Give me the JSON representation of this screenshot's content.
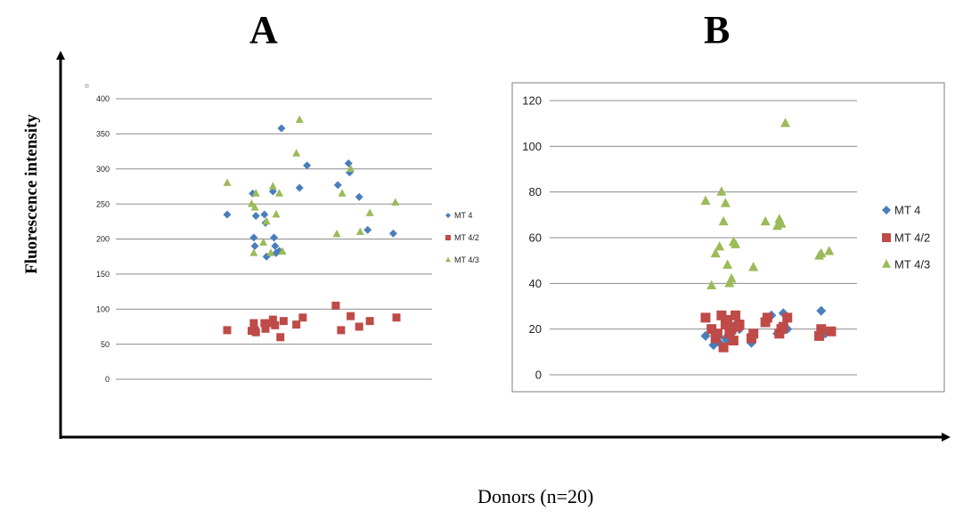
{
  "panels": {
    "a": "A",
    "b": "B"
  },
  "axis_labels": {
    "y": "Fluorescence intensity",
    "x": "Donors (n=20)"
  },
  "colors": {
    "mt4": "#4a7ebb",
    "mt42": "#be4b48",
    "mt43": "#9bbb59"
  },
  "chart_data": [
    {
      "type": "scatter",
      "panel": "A",
      "ylim": [
        0,
        400
      ],
      "yticks": [
        "0",
        "50",
        "100",
        "150",
        "200",
        "250",
        "300",
        "350",
        "400"
      ],
      "grid": true,
      "legend": "right",
      "series": [
        {
          "name": "MT 4",
          "marker": "diamond",
          "x": [
            1,
            3.4,
            3.5,
            3.6,
            3.7,
            4.5,
            4.6,
            4.7,
            5.3,
            5.4,
            5.5,
            5.6,
            5.9,
            6.1,
            7.8,
            8.5,
            11.4,
            12.4,
            12.5,
            13.4,
            14.2,
            16.6
          ],
          "y": [
            235,
            265,
            202,
            190,
            233,
            235,
            223,
            175,
            268,
            202,
            190,
            180,
            183,
            358,
            273,
            305,
            277,
            308,
            295,
            260,
            213,
            208
          ]
        },
        {
          "name": "MT 4/2",
          "marker": "square",
          "x": [
            1,
            3.3,
            3.5,
            3.6,
            3.7,
            4.5,
            4.6,
            5.1,
            5.3,
            5.5,
            6,
            6.3,
            7.5,
            8.1,
            11.2,
            11.7,
            12.6,
            13.4,
            14.4,
            16.9
          ],
          "y": [
            70,
            69,
            80,
            70,
            67,
            80,
            72,
            80,
            85,
            77,
            60,
            83,
            78,
            88,
            105,
            70,
            90,
            75,
            83,
            88
          ]
        },
        {
          "name": "MT 4/3",
          "marker": "triangle",
          "x": [
            1,
            3.3,
            3.5,
            3.6,
            3.7,
            4.4,
            4.7,
            5.1,
            5.3,
            5.6,
            5.9,
            6.2,
            7.5,
            7.8,
            11.3,
            11.8,
            12.6,
            13.5,
            14.4,
            16.8
          ],
          "y": [
            280,
            250,
            180,
            245,
            265,
            195,
            225,
            180,
            275,
            235,
            265,
            182,
            322,
            370,
            207,
            265,
            300,
            210,
            237,
            252
          ]
        }
      ]
    },
    {
      "type": "scatter",
      "panel": "B",
      "ylim": [
        0,
        120
      ],
      "yticks": [
        "0",
        "20",
        "40",
        "60",
        "80",
        "100",
        "120"
      ],
      "grid": true,
      "legend": "right",
      "series": [
        {
          "name": "MT 4",
          "marker": "diamond",
          "x": [
            1,
            1.4,
            1.7,
            2,
            2.1,
            2.3,
            2.5,
            2.7,
            3.3,
            4,
            4.3,
            4.6,
            4.9,
            5.1,
            6.8,
            7
          ],
          "y": [
            17,
            13,
            14,
            16,
            15,
            18,
            22,
            20,
            14,
            24,
            26,
            18,
            27,
            20,
            28,
            18
          ]
        },
        {
          "name": "MT 4/2",
          "marker": "square",
          "x": [
            1,
            1.3,
            1.5,
            1.6,
            1.8,
            1.9,
            2,
            2.1,
            2.2,
            2.3,
            2.4,
            2.5,
            2.6,
            2.7,
            3.3,
            3.4,
            4,
            4.1,
            4.7,
            4.8,
            4.9,
            5.1,
            6.7,
            6.8,
            7.3
          ],
          "y": [
            25,
            20,
            16,
            18,
            26,
            12,
            22,
            24,
            18,
            20,
            15,
            26,
            21,
            22,
            16,
            18,
            23,
            25,
            18,
            20,
            21,
            25,
            17,
            20,
            19
          ]
        },
        {
          "name": "MT 4/3",
          "marker": "triangle",
          "x": [
            1,
            1.3,
            1.5,
            1.7,
            1.8,
            1.9,
            2,
            2.1,
            2.2,
            2.3,
            2.4,
            2.5,
            3.4,
            4,
            4.6,
            4.7,
            4.8,
            5,
            6.7,
            6.8,
            7.2
          ],
          "y": [
            76,
            39,
            53,
            56,
            80,
            67,
            75,
            48,
            40,
            42,
            58,
            57,
            47,
            67,
            65,
            68,
            66,
            110,
            52,
            53,
            54
          ]
        }
      ]
    }
  ]
}
